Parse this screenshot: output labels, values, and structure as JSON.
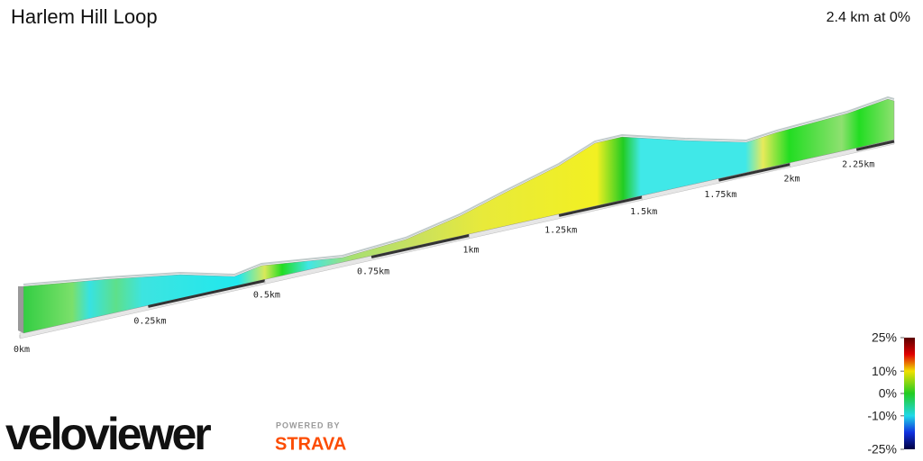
{
  "chart_data": {
    "type": "elevation-profile",
    "title": "Harlem Hill Loop",
    "subtitle": "2.4 km at 0%",
    "xlim": [
      0,
      2.4
    ],
    "xticks": [
      {
        "value": 0,
        "label": "0km"
      },
      {
        "value": 0.25,
        "label": "0.25km"
      },
      {
        "value": 0.5,
        "label": "0.5km"
      },
      {
        "value": 0.75,
        "label": "0.75km"
      },
      {
        "value": 1,
        "label": "1km"
      },
      {
        "value": 1.25,
        "label": "1.25km"
      },
      {
        "value": 1.5,
        "label": "1.5km"
      },
      {
        "value": 1.75,
        "label": "1.75km"
      },
      {
        "value": 2,
        "label": "2km"
      },
      {
        "value": 2.25,
        "label": "2.25km"
      }
    ],
    "colorbar": {
      "ylim": [
        -25,
        25
      ],
      "yticks": [
        {
          "value": 25,
          "label": "25%"
        },
        {
          "value": 10,
          "label": "10%"
        },
        {
          "value": 0,
          "label": "0%"
        },
        {
          "value": -10,
          "label": "-10%"
        },
        {
          "value": -25,
          "label": "-25%"
        }
      ]
    },
    "branding": {
      "logo": "veloviewer",
      "powered_by": "POWERED BY",
      "partner": "STRAVA"
    }
  }
}
